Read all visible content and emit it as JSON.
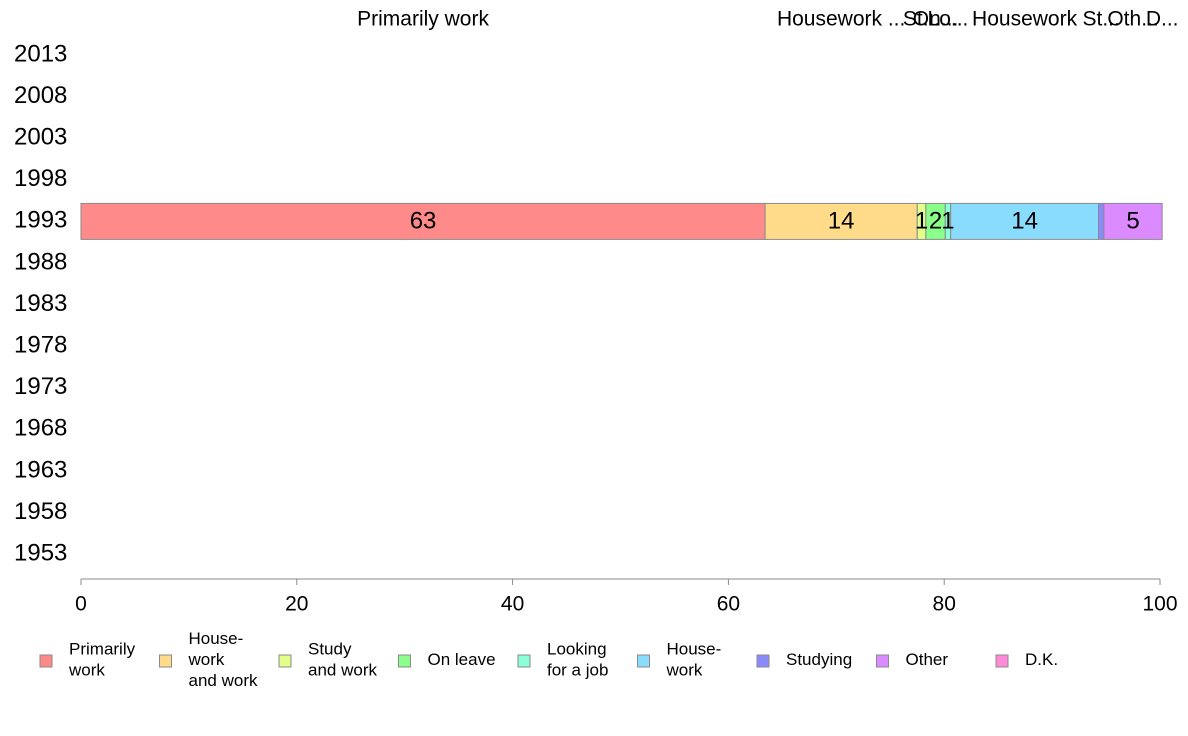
{
  "chart_data": {
    "type": "bar",
    "orientation": "horizontal",
    "stacked": true,
    "categories": [
      "2013",
      "2008",
      "2003",
      "1998",
      "1993",
      "1988",
      "1983",
      "1978",
      "1973",
      "1968",
      "1963",
      "1958",
      "1953"
    ],
    "xlim": [
      0,
      100
    ],
    "xticks": [
      "0",
      "20",
      "40",
      "60",
      "80",
      "100"
    ],
    "grid": false,
    "legend_position": "bottom",
    "top_labels": [
      "Primarily work",
      "Housework ...",
      "St...",
      "On...",
      "Lo...",
      "Housework",
      "St...",
      "Oth...",
      "D..."
    ],
    "series": [
      {
        "name": "Primarily work",
        "legend_lines": [
          "Primarily",
          "work"
        ],
        "color": "#ff8a8a",
        "values": [
          null,
          null,
          null,
          null,
          63.4,
          null,
          null,
          null,
          null,
          null,
          null,
          null,
          null
        ],
        "labels": [
          "",
          "",
          "",
          "",
          "63",
          "",
          "",
          "",
          "",
          "",
          "",
          "",
          ""
        ]
      },
      {
        "name": "House-work and work",
        "legend_lines": [
          "House-",
          "work",
          "and work"
        ],
        "color": "#ffdb8a",
        "values": [
          null,
          null,
          null,
          null,
          14.1,
          null,
          null,
          null,
          null,
          null,
          null,
          null,
          null
        ],
        "labels": [
          "",
          "",
          "",
          "",
          "14",
          "",
          "",
          "",
          "",
          "",
          "",
          "",
          ""
        ]
      },
      {
        "name": "Study and work",
        "legend_lines": [
          "Study",
          "and work"
        ],
        "color": "#e2ff8a",
        "values": [
          null,
          null,
          null,
          null,
          0.8,
          null,
          null,
          null,
          null,
          null,
          null,
          null,
          null
        ],
        "labels": [
          "",
          "",
          "",
          "",
          "1",
          "",
          "",
          "",
          "",
          "",
          "",
          "",
          ""
        ]
      },
      {
        "name": "On leave",
        "legend_lines": [
          "On leave"
        ],
        "color": "#8aff8a",
        "values": [
          null,
          null,
          null,
          null,
          1.8,
          null,
          null,
          null,
          null,
          null,
          null,
          null,
          null
        ],
        "labels": [
          "",
          "",
          "",
          "",
          "2",
          "",
          "",
          "",
          "",
          "",
          "",
          "",
          ""
        ]
      },
      {
        "name": "Looking for a job",
        "legend_lines": [
          "Looking",
          "for a job"
        ],
        "color": "#8affd8",
        "values": [
          null,
          null,
          null,
          null,
          0.5,
          null,
          null,
          null,
          null,
          null,
          null,
          null,
          null
        ],
        "labels": [
          "",
          "",
          "",
          "",
          "1",
          "",
          "",
          "",
          "",
          "",
          "",
          "",
          ""
        ]
      },
      {
        "name": "House-work",
        "legend_lines": [
          "House-",
          "work"
        ],
        "color": "#8adcff",
        "values": [
          null,
          null,
          null,
          null,
          13.7,
          null,
          null,
          null,
          null,
          null,
          null,
          null,
          null
        ],
        "labels": [
          "",
          "",
          "",
          "",
          "14",
          "",
          "",
          "",
          "",
          "",
          "",
          "",
          ""
        ]
      },
      {
        "name": "Studying",
        "legend_lines": [
          "Studying"
        ],
        "color": "#8a8aff",
        "values": [
          null,
          null,
          null,
          null,
          0.5,
          null,
          null,
          null,
          null,
          null,
          null,
          null,
          null
        ],
        "labels": [
          "",
          "",
          "",
          "",
          "",
          "",
          "",
          "",
          "",
          "",
          "",
          "",
          ""
        ]
      },
      {
        "name": "Other",
        "legend_lines": [
          "Other"
        ],
        "color": "#dc8aff",
        "values": [
          null,
          null,
          null,
          null,
          5.4,
          null,
          null,
          null,
          null,
          null,
          null,
          null,
          null
        ],
        "labels": [
          "",
          "",
          "",
          "",
          "5",
          "",
          "",
          "",
          "",
          "",
          "",
          "",
          ""
        ]
      },
      {
        "name": "D.K.",
        "legend_lines": [
          "D.K."
        ],
        "color": "#ff8ad8",
        "values": [
          null,
          null,
          null,
          null,
          0,
          null,
          null,
          null,
          null,
          null,
          null,
          null,
          null
        ],
        "labels": [
          "",
          "",
          "",
          "",
          "",
          "",
          "",
          "",
          "",
          "",
          "",
          "",
          ""
        ]
      }
    ]
  }
}
